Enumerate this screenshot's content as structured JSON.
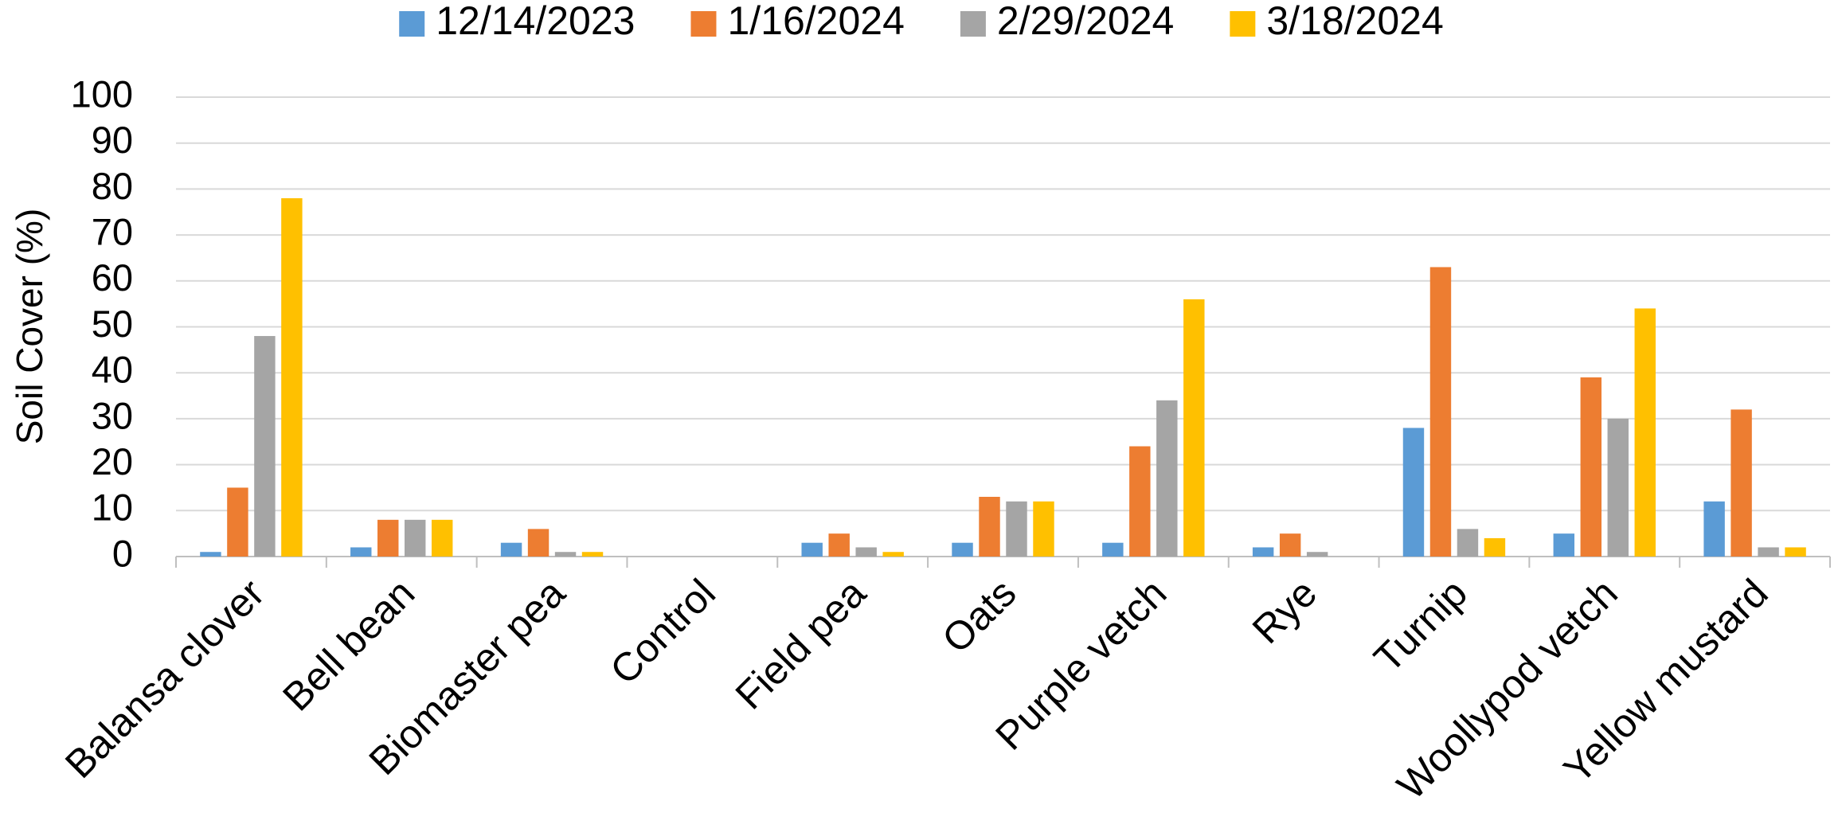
{
  "chart_data": {
    "type": "bar",
    "y_label": "Soil Cover (%)",
    "categories": [
      "Balansa clover",
      "Bell bean",
      "Biomaster pea",
      "Control",
      "Field pea",
      "Oats",
      "Purple vetch",
      "Rye",
      "Turnip",
      "Woollypod vetch",
      "Yellow mustard"
    ],
    "series": [
      {
        "name": "12/14/2023",
        "color": "#5b9bd5",
        "values": [
          1,
          2,
          3,
          0,
          3,
          3,
          3,
          2,
          28,
          5,
          12
        ]
      },
      {
        "name": "1/16/2024",
        "color": "#ed7d31",
        "values": [
          15,
          8,
          6,
          0,
          5,
          13,
          24,
          5,
          63,
          39,
          32
        ]
      },
      {
        "name": "2/29/2024",
        "color": "#a5a5a5",
        "values": [
          48,
          8,
          1,
          0,
          2,
          12,
          34,
          1,
          6,
          30,
          2
        ]
      },
      {
        "name": "3/18/2024",
        "color": "#ffc000",
        "values": [
          78,
          8,
          1,
          0,
          1,
          12,
          56,
          0,
          4,
          54,
          2
        ]
      }
    ],
    "ylim": [
      0,
      100
    ],
    "yticks": [
      0,
      10,
      20,
      30,
      40,
      50,
      60,
      70,
      80,
      90,
      100
    ],
    "grid": true,
    "legend": "top"
  }
}
